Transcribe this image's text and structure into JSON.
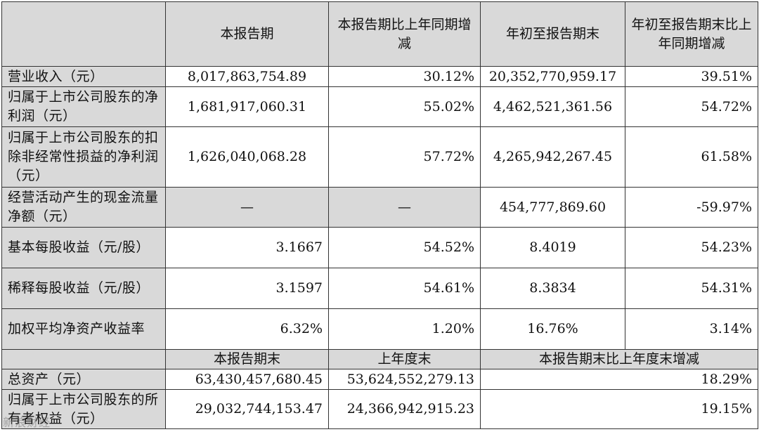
{
  "header": {
    "col1": "本报告期",
    "col2": "本报告期比上年同期增减",
    "col3": "年初至报告期末",
    "col4": "年初至报告期末比上年同期增减"
  },
  "rows": [
    {
      "label": "营业收入（元）",
      "v1": "8,017,863,754.89",
      "v2": "30.12%",
      "v3": "20,352,770,959.17",
      "v4": "39.51%"
    },
    {
      "label": "归属于上市公司股东的净利润（元）",
      "v1": "1,681,917,060.31",
      "v2": "55.02%",
      "v3": "4,462,521,361.56",
      "v4": "54.72%"
    },
    {
      "label": "归属于上市公司股东的扣除非经常性损益的净利润（元）",
      "v1": "1,626,040,068.28",
      "v2": "57.72%",
      "v3": "4,265,942,267.45",
      "v4": "61.58%"
    },
    {
      "label": "经营活动产生的现金流量净额（元）",
      "v1": "—",
      "v2": "—",
      "v3": "454,777,869.60",
      "v4": "-59.97%"
    },
    {
      "label": "基本每股收益（元/股）",
      "v1": "3.1667",
      "v2": "54.52%",
      "v3": "8.4019",
      "v4": "54.23%"
    },
    {
      "label": "稀释每股收益（元/股）",
      "v1": "3.1597",
      "v2": "54.61%",
      "v3": "8.3834",
      "v4": "54.31%"
    },
    {
      "label": "加权平均净资产收益率",
      "v1": "6.32%",
      "v2": "1.20%",
      "v3": "16.76%",
      "v4": "3.14%"
    }
  ],
  "subheader": {
    "col1": "本报告期末",
    "col2": "上年度末",
    "col3": "本报告期末比上年度末增减"
  },
  "rows2": [
    {
      "label": "总资产（元）",
      "v1": "63,430,457,680.45",
      "v2": "53,624,552,279.13",
      "v3": "18.29%"
    },
    {
      "label": "归属于上市公司股东的所有者权益（元）",
      "v1": "29,032,744,153.47",
      "v2": "24,366,942,915.23",
      "v3": "19.15%"
    }
  ],
  "watermark": "新浪财经"
}
